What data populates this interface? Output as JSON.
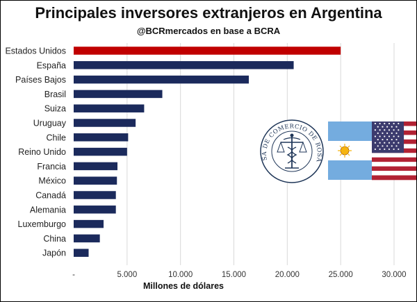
{
  "chart_data": {
    "type": "bar",
    "orientation": "horizontal",
    "title": "Principales inversores extranjeros en Argentina",
    "subtitle": "@BCRmercados en base a BCRA",
    "xlabel": "Millones de dólares",
    "categories": [
      "Estados Unidos",
      "España",
      "Países Bajos",
      "Brasil",
      "Suiza",
      "Uruguay",
      "Chile",
      "Reino Unido",
      "Francia",
      "México",
      "Canadá",
      "Alemania",
      "Luxemburgo",
      "China",
      "Japón"
    ],
    "values": [
      25000,
      20600,
      16400,
      8300,
      6600,
      5800,
      5100,
      5000,
      4100,
      4050,
      3950,
      3950,
      2800,
      2450,
      1400
    ],
    "highlight_color": "#c00000",
    "bar_color": "#1b2a5c",
    "xlim": [
      0,
      30000
    ],
    "xticks": [
      0,
      5000,
      10000,
      15000,
      20000,
      25000,
      30000
    ],
    "xtick_labels": [
      "-",
      "5.000",
      "10.000",
      "15.000",
      "20.000",
      "25.000",
      "30.000"
    ],
    "grid": true
  },
  "seal": {
    "text": "BOLSA DE COMERCIO DE ROSARIO"
  },
  "flags": [
    "argentina-flag",
    "usa-flag"
  ]
}
